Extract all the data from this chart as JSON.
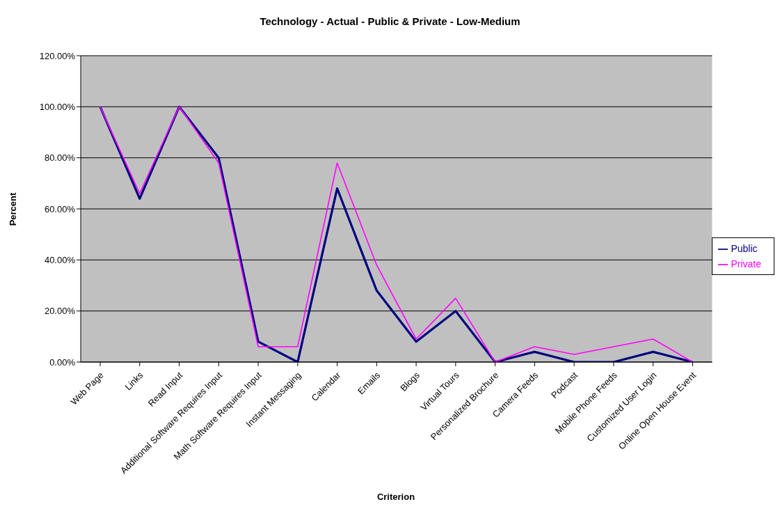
{
  "chart_data": {
    "type": "line",
    "title": "Technology - Actual - Public & Private - Low-Medium",
    "xlabel": "Criterion",
    "ylabel": "Percent",
    "categories": [
      "Web Page",
      "Links",
      "Read Input",
      "Additional Software Requires Input",
      "Math Software Requires Input",
      "Instant Messaging",
      "Calendar",
      "Emails",
      "Blogs",
      "Virtual Tours",
      "Personalized Brochure",
      "Camera Feeds",
      "Podcast",
      "Mobile Phone Feeds",
      "Customized User Login",
      "Online Open House Event"
    ],
    "series": [
      {
        "name": "Public",
        "color": "#000080",
        "values": [
          100,
          64,
          100,
          80,
          8,
          0,
          68,
          28,
          8,
          20,
          0,
          4,
          0,
          0,
          4,
          0
        ]
      },
      {
        "name": "Private",
        "color": "#ff00ff",
        "values": [
          100,
          66,
          100,
          78,
          6,
          6,
          78,
          38,
          9,
          25,
          0,
          6,
          3,
          6,
          9,
          0
        ]
      }
    ],
    "ylim": [
      0,
      120
    ],
    "yticks": [
      {
        "value": 0,
        "label": "0.00%"
      },
      {
        "value": 20,
        "label": "20.00%"
      },
      {
        "value": 40,
        "label": "40.00%"
      },
      {
        "value": 60,
        "label": "60.00%"
      },
      {
        "value": 80,
        "label": "80.00%"
      },
      {
        "value": 100,
        "label": "100.00%"
      },
      {
        "value": 120,
        "label": "120.00%"
      }
    ],
    "grid": "y",
    "legend": "right"
  }
}
